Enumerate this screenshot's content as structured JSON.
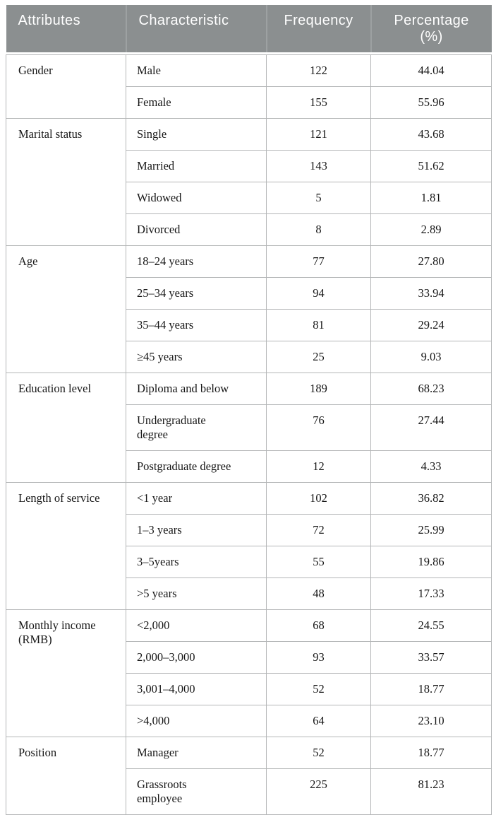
{
  "table": {
    "columns": [
      "Attributes",
      "Characteristic",
      "Frequency",
      "Percentage\n(%)"
    ],
    "sections": [
      {
        "attribute": "Gender",
        "rows": [
          [
            "Male",
            "122",
            "44.04"
          ],
          [
            "Female",
            "155",
            "55.96"
          ]
        ]
      },
      {
        "attribute": "Marital status",
        "rows": [
          [
            "Single",
            "121",
            "43.68"
          ],
          [
            "Married",
            "143",
            "51.62"
          ],
          [
            "Widowed",
            "5",
            "1.81"
          ],
          [
            "Divorced",
            "8",
            "2.89"
          ]
        ]
      },
      {
        "attribute": "Age",
        "rows": [
          [
            "18–24 years",
            "77",
            "27.80"
          ],
          [
            "25–34 years",
            "94",
            "33.94"
          ],
          [
            "35–44 years",
            "81",
            "29.24"
          ],
          [
            "≥45 years",
            "25",
            "9.03"
          ]
        ]
      },
      {
        "attribute": "Education level",
        "rows": [
          [
            "Diploma and below",
            "189",
            "68.23"
          ],
          [
            "Undergraduate\ndegree",
            "76",
            "27.44"
          ],
          [
            "Postgraduate degree",
            "12",
            "4.33"
          ]
        ]
      },
      {
        "attribute": "Length of service",
        "rows": [
          [
            "<1 year",
            "102",
            "36.82"
          ],
          [
            "1–3 years",
            "72",
            "25.99"
          ],
          [
            "3–5years",
            "55",
            "19.86"
          ],
          [
            ">5 years",
            "48",
            "17.33"
          ]
        ]
      },
      {
        "attribute": "Monthly income\n(RMB)",
        "rows": [
          [
            "<2,000",
            "68",
            "24.55"
          ],
          [
            "2,000–3,000",
            "93",
            "33.57"
          ],
          [
            "3,001–4,000",
            "52",
            "18.77"
          ],
          [
            ">4,000",
            "64",
            "23.10"
          ]
        ]
      },
      {
        "attribute": "Position",
        "rows": [
          [
            "Manager",
            "52",
            "18.77"
          ],
          [
            "Grassroots\nemployee",
            "225",
            "81.23"
          ]
        ]
      }
    ],
    "colors": {
      "header_bg": "#8b8f90",
      "header_text": "#ffffff",
      "border": "#b4b6b7",
      "body_text": "#171717"
    }
  }
}
